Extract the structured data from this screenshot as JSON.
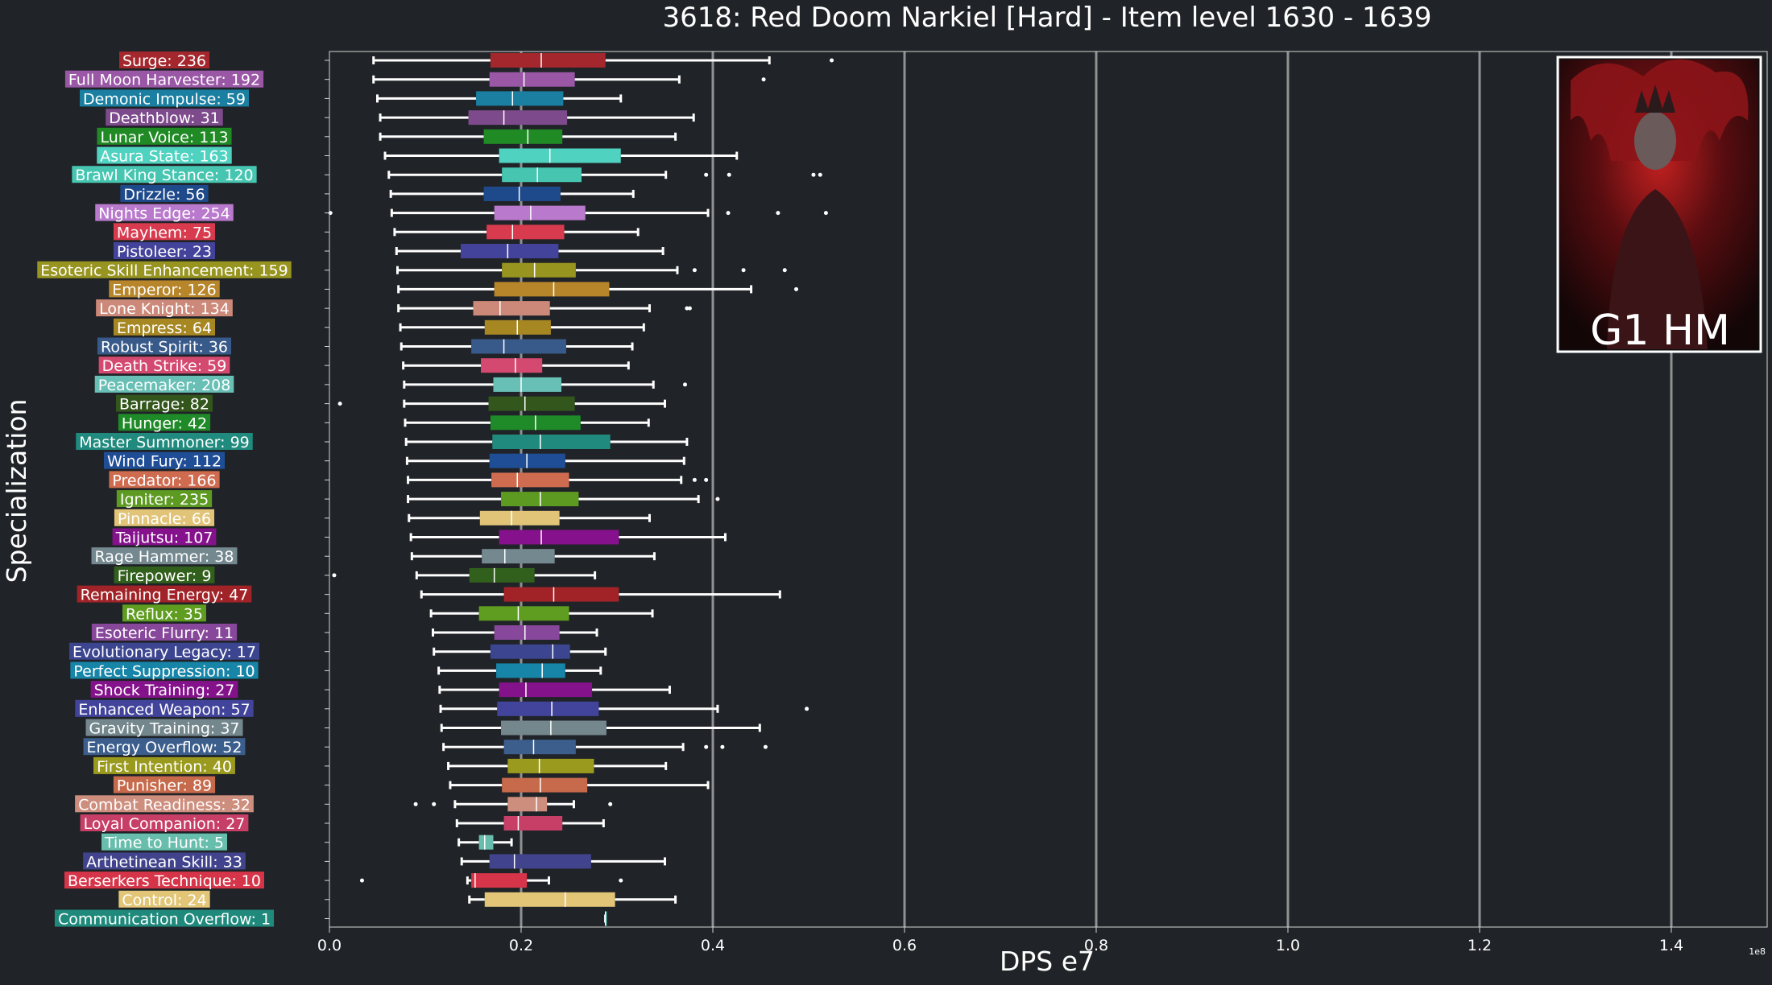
{
  "chart_data": {
    "type": "box",
    "title": "3618: Red Doom Narkiel [Hard] - Item level 1630 - 1639",
    "xlabel": "DPS e7",
    "ylabel": "Specialization",
    "x_offset_label": "1e8",
    "xlim": [
      0,
      1.5
    ],
    "xticks": [
      0.0,
      0.2,
      0.4,
      0.6,
      0.8,
      1.0,
      1.2,
      1.4
    ],
    "grid": "vertical",
    "badge_text": "G1 HM",
    "series": [
      {
        "label": "Surge: 236",
        "color": "#a3272d",
        "whisker_low": 0.046,
        "q1": 0.168,
        "median": 0.221,
        "q3": 0.288,
        "whisker_high": 0.459,
        "outliers": [
          0.524
        ]
      },
      {
        "label": "Full Moon Harvester: 192",
        "color": "#9a57a6",
        "whisker_low": 0.046,
        "q1": 0.167,
        "median": 0.203,
        "q3": 0.256,
        "whisker_high": 0.365,
        "outliers": [
          0.453
        ]
      },
      {
        "label": "Demonic Impulse: 59",
        "color": "#1a7fa1",
        "whisker_low": 0.05,
        "q1": 0.153,
        "median": 0.191,
        "q3": 0.244,
        "whisker_high": 0.304,
        "outliers": []
      },
      {
        "label": "Deathblow: 31",
        "color": "#7d4a8b",
        "whisker_low": 0.053,
        "q1": 0.145,
        "median": 0.182,
        "q3": 0.248,
        "whisker_high": 0.38,
        "outliers": []
      },
      {
        "label": "Lunar Voice: 113",
        "color": "#208a25",
        "whisker_low": 0.053,
        "q1": 0.161,
        "median": 0.207,
        "q3": 0.243,
        "whisker_high": 0.361,
        "outliers": []
      },
      {
        "label": "Asura State: 163",
        "color": "#4fd3c0",
        "whisker_low": 0.058,
        "q1": 0.177,
        "median": 0.23,
        "q3": 0.304,
        "whisker_high": 0.425,
        "outliers": []
      },
      {
        "label": "Brawl King Stance: 120",
        "color": "#46c6b1",
        "whisker_low": 0.062,
        "q1": 0.18,
        "median": 0.217,
        "q3": 0.263,
        "whisker_high": 0.351,
        "outliers": [
          0.393,
          0.417,
          0.505,
          0.512
        ]
      },
      {
        "label": "Drizzle: 56",
        "color": "#1e4a8c",
        "whisker_low": 0.064,
        "q1": 0.161,
        "median": 0.198,
        "q3": 0.241,
        "whisker_high": 0.317,
        "outliers": []
      },
      {
        "label": "Nights Edge: 254",
        "color": "#b979cc",
        "whisker_low": 0.065,
        "q1": 0.172,
        "median": 0.21,
        "q3": 0.267,
        "whisker_high": 0.395,
        "outliers": [
          0.001,
          0.416,
          0.468,
          0.518
        ]
      },
      {
        "label": "Mayhem: 75",
        "color": "#d83a4e",
        "whisker_low": 0.068,
        "q1": 0.164,
        "median": 0.191,
        "q3": 0.245,
        "whisker_high": 0.322,
        "outliers": []
      },
      {
        "label": "Pistoleer: 23",
        "color": "#43439b",
        "whisker_low": 0.07,
        "q1": 0.137,
        "median": 0.186,
        "q3": 0.239,
        "whisker_high": 0.348,
        "outliers": []
      },
      {
        "label": "Esoteric Skill Enhancement: 159",
        "color": "#97941f",
        "whisker_low": 0.071,
        "q1": 0.18,
        "median": 0.214,
        "q3": 0.257,
        "whisker_high": 0.363,
        "outliers": [
          0.381,
          0.432,
          0.475
        ]
      },
      {
        "label": "Emperor: 126",
        "color": "#b8862a",
        "whisker_low": 0.072,
        "q1": 0.172,
        "median": 0.234,
        "q3": 0.292,
        "whisker_high": 0.44,
        "outliers": [
          0.487
        ]
      },
      {
        "label": "Lone Knight: 134",
        "color": "#cc8979",
        "whisker_low": 0.072,
        "q1": 0.15,
        "median": 0.178,
        "q3": 0.23,
        "whisker_high": 0.334,
        "outliers": [
          0.373,
          0.376
        ]
      },
      {
        "label": "Empress: 64",
        "color": "#a68722",
        "whisker_low": 0.074,
        "q1": 0.162,
        "median": 0.196,
        "q3": 0.231,
        "whisker_high": 0.328,
        "outliers": []
      },
      {
        "label": "Robust Spirit: 36",
        "color": "#385a8a",
        "whisker_low": 0.075,
        "q1": 0.148,
        "median": 0.182,
        "q3": 0.247,
        "whisker_high": 0.316,
        "outliers": []
      },
      {
        "label": "Death Strike: 59",
        "color": "#d4496f",
        "whisker_low": 0.077,
        "q1": 0.158,
        "median": 0.194,
        "q3": 0.222,
        "whisker_high": 0.312,
        "outliers": []
      },
      {
        "label": "Peacemaker: 208",
        "color": "#68bfb5",
        "whisker_low": 0.078,
        "q1": 0.171,
        "median": 0.2,
        "q3": 0.242,
        "whisker_high": 0.338,
        "outliers": [
          0.371
        ]
      },
      {
        "label": "Barrage: 82",
        "color": "#33561d",
        "whisker_low": 0.078,
        "q1": 0.166,
        "median": 0.204,
        "q3": 0.256,
        "whisker_high": 0.35,
        "outliers": [
          0.011
        ]
      },
      {
        "label": "Hunger: 42",
        "color": "#1e8a28",
        "whisker_low": 0.079,
        "q1": 0.168,
        "median": 0.215,
        "q3": 0.262,
        "whisker_high": 0.333,
        "outliers": []
      },
      {
        "label": "Master Summoner: 99",
        "color": "#1f8a7d",
        "whisker_low": 0.08,
        "q1": 0.17,
        "median": 0.22,
        "q3": 0.293,
        "whisker_high": 0.373,
        "outliers": []
      },
      {
        "label": "Wind Fury: 112",
        "color": "#1f4e96",
        "whisker_low": 0.081,
        "q1": 0.167,
        "median": 0.206,
        "q3": 0.246,
        "whisker_high": 0.37,
        "outliers": []
      },
      {
        "label": "Predator: 166",
        "color": "#cf6c50",
        "whisker_low": 0.082,
        "q1": 0.169,
        "median": 0.196,
        "q3": 0.25,
        "whisker_high": 0.367,
        "outliers": [
          0.381,
          0.393
        ]
      },
      {
        "label": "Igniter: 235",
        "color": "#5d9a22",
        "whisker_low": 0.082,
        "q1": 0.179,
        "median": 0.22,
        "q3": 0.26,
        "whisker_high": 0.385,
        "outliers": [
          0.405
        ]
      },
      {
        "label": "Pinnacle: 66",
        "color": "#e2c478",
        "whisker_low": 0.083,
        "q1": 0.157,
        "median": 0.19,
        "q3": 0.24,
        "whisker_high": 0.334,
        "outliers": []
      },
      {
        "label": "Taijutsu: 107",
        "color": "#85128c",
        "whisker_low": 0.085,
        "q1": 0.177,
        "median": 0.221,
        "q3": 0.302,
        "whisker_high": 0.413,
        "outliers": []
      },
      {
        "label": "Rage Hammer: 38",
        "color": "#74888f",
        "whisker_low": 0.086,
        "q1": 0.159,
        "median": 0.183,
        "q3": 0.235,
        "whisker_high": 0.339,
        "outliers": []
      },
      {
        "label": "Firepower: 9",
        "color": "#315f1c",
        "whisker_low": 0.091,
        "q1": 0.146,
        "median": 0.172,
        "q3": 0.214,
        "whisker_high": 0.277,
        "outliers": [
          0.005
        ]
      },
      {
        "label": "Remaining Energy: 47",
        "color": "#a12328",
        "whisker_low": 0.096,
        "q1": 0.182,
        "median": 0.234,
        "q3": 0.302,
        "whisker_high": 0.47,
        "outliers": []
      },
      {
        "label": "Reflux: 35",
        "color": "#5f9d20",
        "whisker_low": 0.106,
        "q1": 0.156,
        "median": 0.197,
        "q3": 0.25,
        "whisker_high": 0.337,
        "outliers": []
      },
      {
        "label": "Esoteric Flurry: 11",
        "color": "#87479a",
        "whisker_low": 0.108,
        "q1": 0.172,
        "median": 0.204,
        "q3": 0.24,
        "whisker_high": 0.279,
        "outliers": []
      },
      {
        "label": "Evolutionary Legacy: 17",
        "color": "#3c4590",
        "whisker_low": 0.109,
        "q1": 0.168,
        "median": 0.233,
        "q3": 0.251,
        "whisker_high": 0.288,
        "outliers": []
      },
      {
        "label": "Perfect Suppression: 10",
        "color": "#1785a8",
        "whisker_low": 0.114,
        "q1": 0.174,
        "median": 0.222,
        "q3": 0.246,
        "whisker_high": 0.283,
        "outliers": []
      },
      {
        "label": "Shock Training: 27",
        "color": "#84138b",
        "whisker_low": 0.115,
        "q1": 0.177,
        "median": 0.205,
        "q3": 0.274,
        "whisker_high": 0.355,
        "outliers": []
      },
      {
        "label": "Enhanced Weapon: 57",
        "color": "#42449c",
        "whisker_low": 0.116,
        "q1": 0.175,
        "median": 0.232,
        "q3": 0.281,
        "whisker_high": 0.405,
        "outliers": [
          0.498
        ]
      },
      {
        "label": "Gravity Training: 37",
        "color": "#73878d",
        "whisker_low": 0.117,
        "q1": 0.179,
        "median": 0.231,
        "q3": 0.289,
        "whisker_high": 0.449,
        "outliers": []
      },
      {
        "label": "Energy Overflow: 52",
        "color": "#3b5e8c",
        "whisker_low": 0.119,
        "q1": 0.182,
        "median": 0.213,
        "q3": 0.257,
        "whisker_high": 0.369,
        "outliers": [
          0.393,
          0.41,
          0.455
        ]
      },
      {
        "label": "First Intention: 40",
        "color": "#9a9a1e",
        "whisker_low": 0.124,
        "q1": 0.186,
        "median": 0.219,
        "q3": 0.276,
        "whisker_high": 0.351,
        "outliers": []
      },
      {
        "label": "Punisher: 89",
        "color": "#c66a4b",
        "whisker_low": 0.126,
        "q1": 0.18,
        "median": 0.22,
        "q3": 0.269,
        "whisker_high": 0.395,
        "outliers": []
      },
      {
        "label": "Combat Readiness: 32",
        "color": "#ce8e7e",
        "whisker_low": 0.131,
        "q1": 0.186,
        "median": 0.216,
        "q3": 0.227,
        "whisker_high": 0.255,
        "outliers": [
          0.09,
          0.109,
          0.293
        ]
      },
      {
        "label": "Loyal Companion: 27",
        "color": "#c73f67",
        "whisker_low": 0.133,
        "q1": 0.182,
        "median": 0.197,
        "q3": 0.243,
        "whisker_high": 0.286,
        "outliers": []
      },
      {
        "label": "Time to Hunt: 5",
        "color": "#68beac",
        "whisker_low": 0.135,
        "q1": 0.156,
        "median": 0.162,
        "q3": 0.171,
        "whisker_high": 0.19,
        "outliers": []
      },
      {
        "label": "Arthetinean Skill: 33",
        "color": "#41448c",
        "whisker_low": 0.138,
        "q1": 0.167,
        "median": 0.193,
        "q3": 0.273,
        "whisker_high": 0.35,
        "outliers": []
      },
      {
        "label": "Berserkers Technique: 10",
        "color": "#d63549",
        "whisker_low": 0.144,
        "q1": 0.148,
        "median": 0.152,
        "q3": 0.206,
        "whisker_high": 0.229,
        "outliers": [
          0.034,
          0.304
        ]
      },
      {
        "label": "Control: 24",
        "color": "#e2c576",
        "whisker_low": 0.146,
        "q1": 0.162,
        "median": 0.246,
        "q3": 0.298,
        "whisker_high": 0.361,
        "outliers": []
      },
      {
        "label": "Communication Overflow: 1",
        "color": "#1f8a7c",
        "whisker_low": 0.288,
        "q1": 0.288,
        "median": 0.288,
        "q3": 0.288,
        "whisker_high": 0.288,
        "outliers": []
      }
    ]
  }
}
